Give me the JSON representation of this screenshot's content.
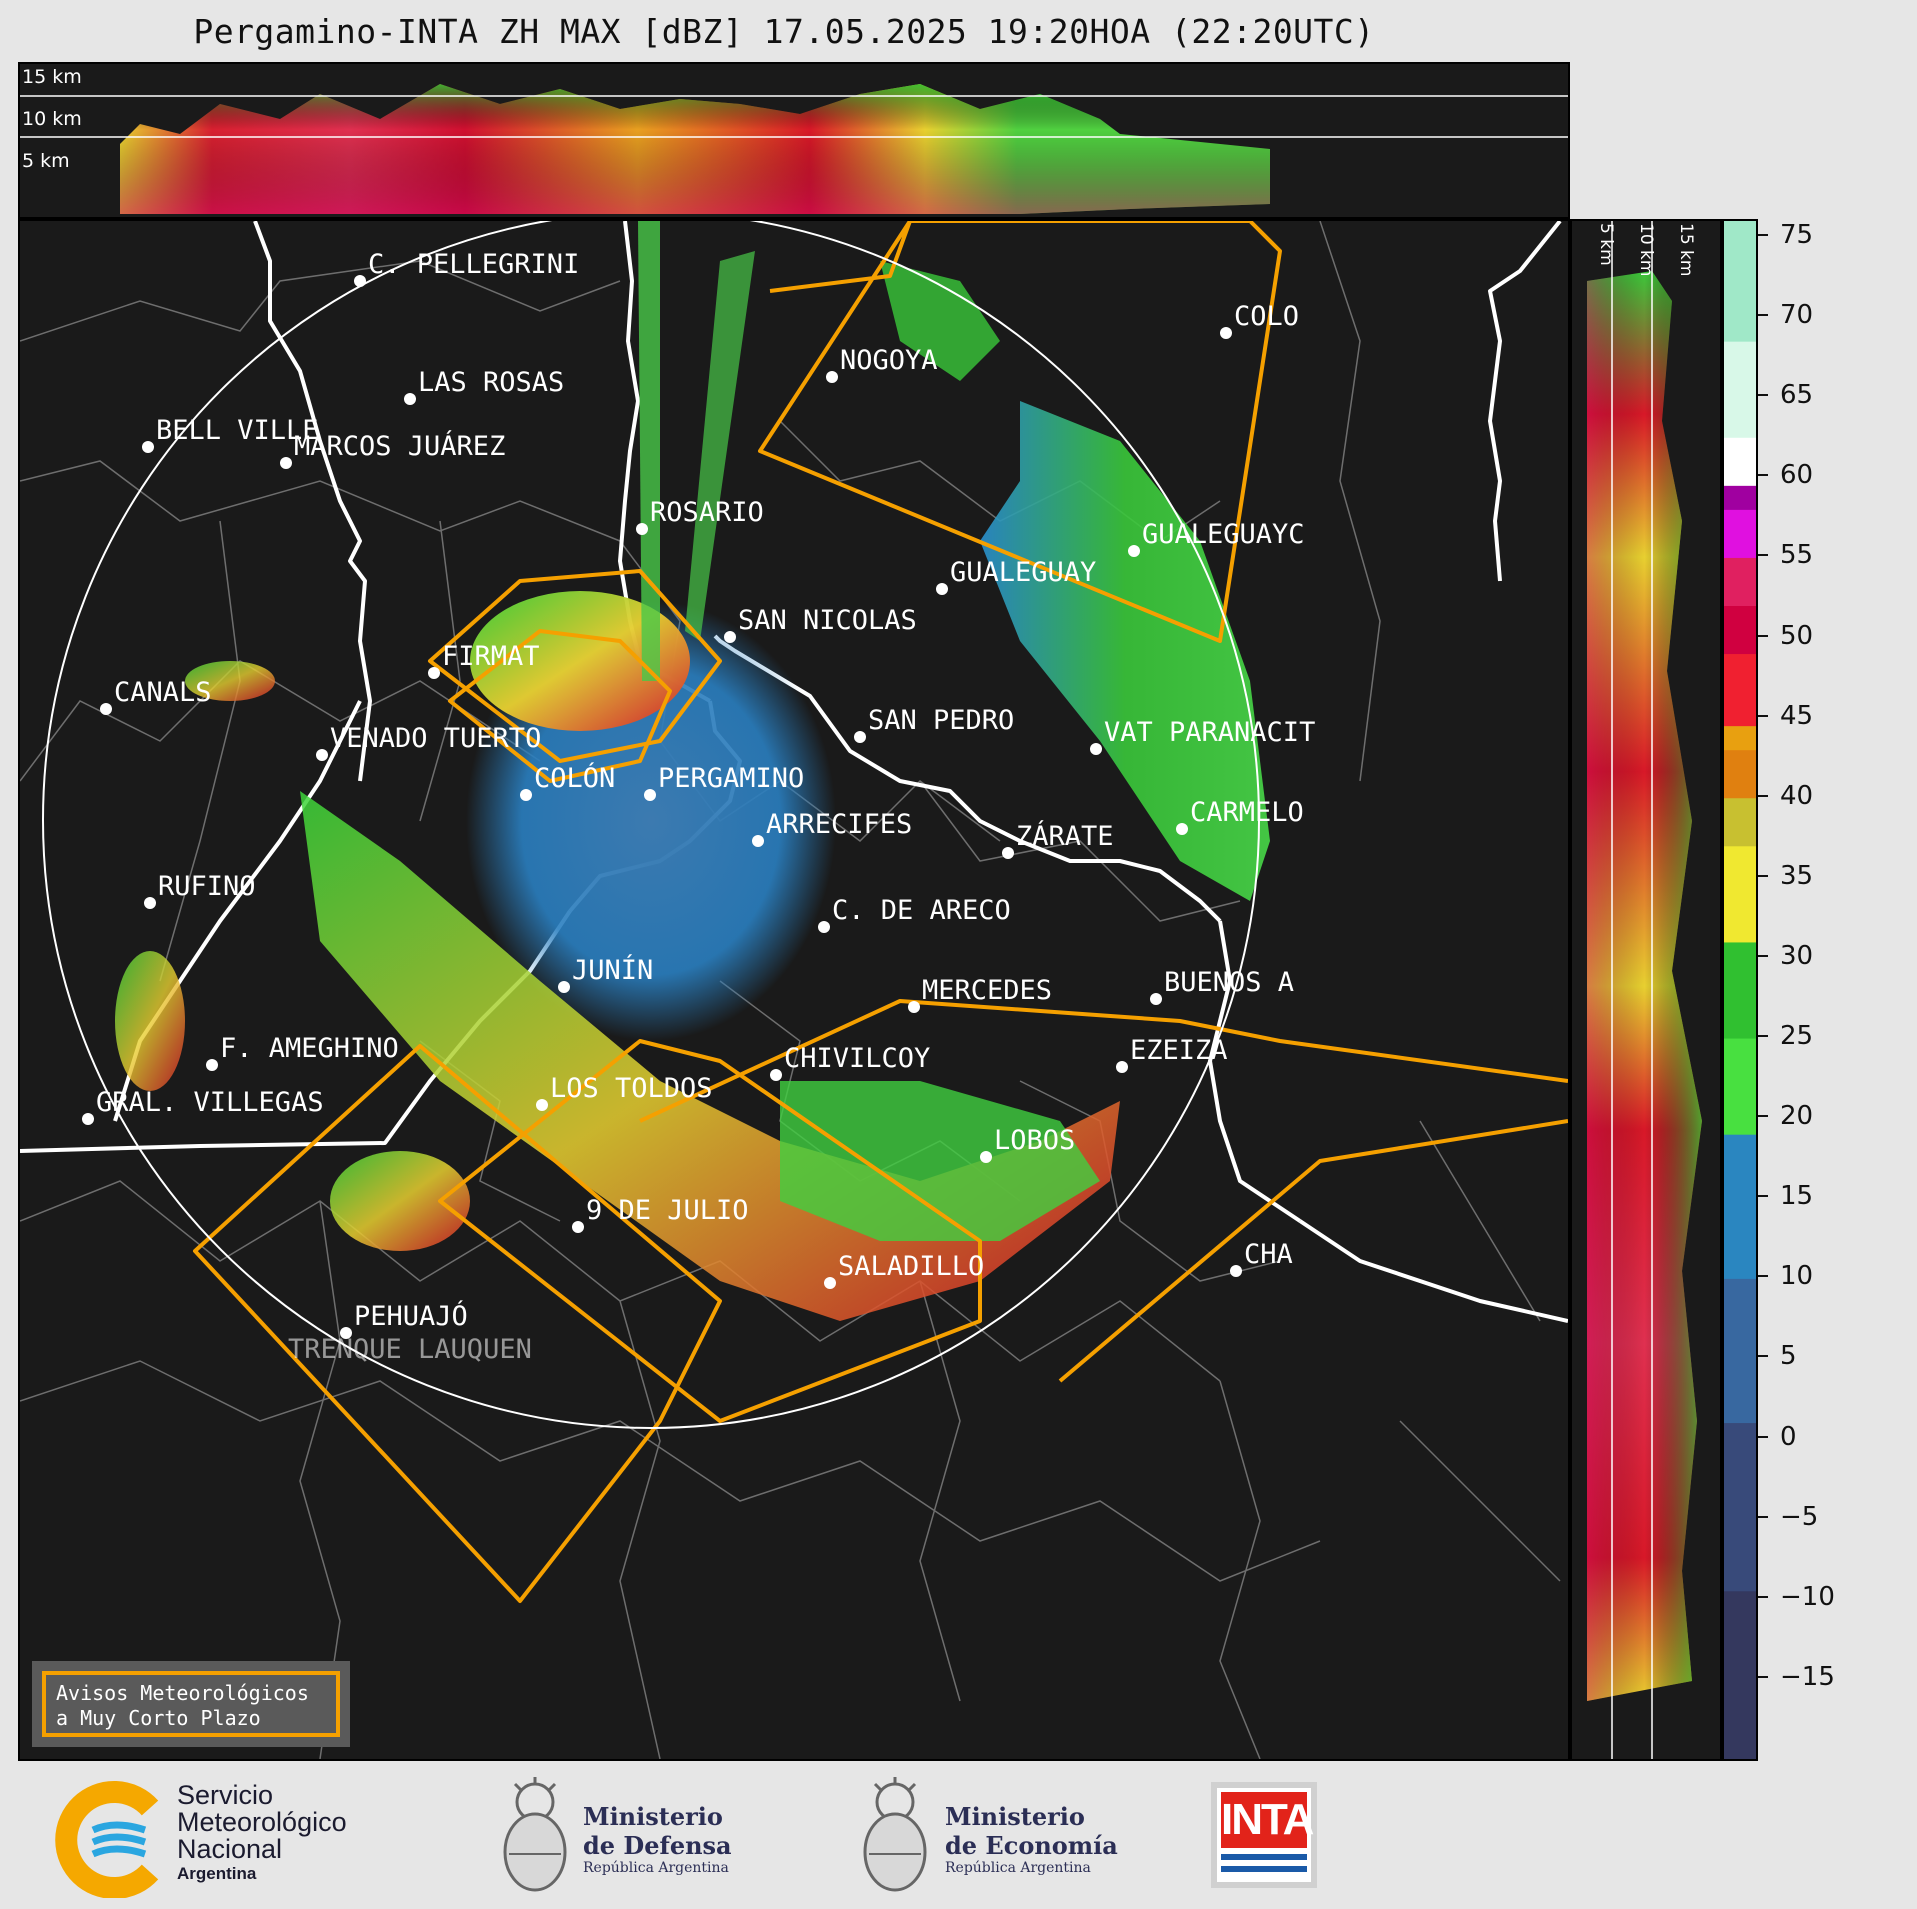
{
  "title": "Pergamino-INTA ZH MAX [dBZ] 17.05.2025 19:20HOA (22:20UTC)",
  "top_panel": {
    "height_labels": [
      "15 km",
      "10 km",
      "5 km"
    ]
  },
  "side_panel": {
    "height_labels": [
      "5 km",
      "10 km",
      "15 km"
    ]
  },
  "colorbar": {
    "ticks": [
      "75",
      "70",
      "65",
      "60",
      "55",
      "50",
      "45",
      "40",
      "35",
      "30",
      "25",
      "20",
      "15",
      "10",
      "5",
      "0",
      "−5",
      "−10",
      "−15"
    ],
    "min": -20,
    "max": 76
  },
  "cities": [
    {
      "name": "C. PELLEGRINI"
    },
    {
      "name": "LAS ROSAS"
    },
    {
      "name": "BELL VILLE"
    },
    {
      "name": "MARCOS JUÁREZ"
    },
    {
      "name": "NOGOYA"
    },
    {
      "name": "COLO"
    },
    {
      "name": "ROSARIO"
    },
    {
      "name": "GUALEGUAYC"
    },
    {
      "name": "GUALEGUAY"
    },
    {
      "name": "SAN NICOLAS"
    },
    {
      "name": "FIRMAT"
    },
    {
      "name": "CANALS"
    },
    {
      "name": "SAN PEDRO"
    },
    {
      "name": "VENADO TUERTO"
    },
    {
      "name": "VAT PARANACIT"
    },
    {
      "name": "COLÓN"
    },
    {
      "name": "PERGAMINO"
    },
    {
      "name": "CARMELO"
    },
    {
      "name": "ARRECIFES"
    },
    {
      "name": "ZÁRATE"
    },
    {
      "name": "RUFINO"
    },
    {
      "name": "C. DE ARECO"
    },
    {
      "name": "JUNÍN"
    },
    {
      "name": "BUENOS A"
    },
    {
      "name": "MERCEDES"
    },
    {
      "name": "EZEIZA"
    },
    {
      "name": "F. AMEGHINO"
    },
    {
      "name": "CHIVILCOY"
    },
    {
      "name": "LOS TOLDOS"
    },
    {
      "name": "GRAL. VILLEGAS"
    },
    {
      "name": "LOBOS"
    },
    {
      "name": "9 DE JULIO"
    },
    {
      "name": "SALADILLO"
    },
    {
      "name": "CHA"
    },
    {
      "name": "PEHUAJÓ"
    },
    {
      "name": "TRENQUE LAUQUEN"
    }
  ],
  "legend": {
    "line1": "Avisos Meteorológicos",
    "line2": "a Muy Corto Plazo"
  },
  "colors": {
    "warning_polygon": "#f5a000",
    "range_ring": "#ffffff",
    "map_bg": "#1a1a1a"
  },
  "logos": {
    "smn": {
      "line1": "Servicio",
      "line2": "Meteorológico",
      "line3": "Nacional",
      "line4": "Argentina"
    },
    "defensa": {
      "line1": "Ministerio",
      "line2": "de Defensa",
      "line3": "República Argentina"
    },
    "economia": {
      "line1": "Ministerio",
      "line2": "de Economía",
      "line3": "República Argentina"
    },
    "inta": {
      "text": "INTA"
    }
  }
}
